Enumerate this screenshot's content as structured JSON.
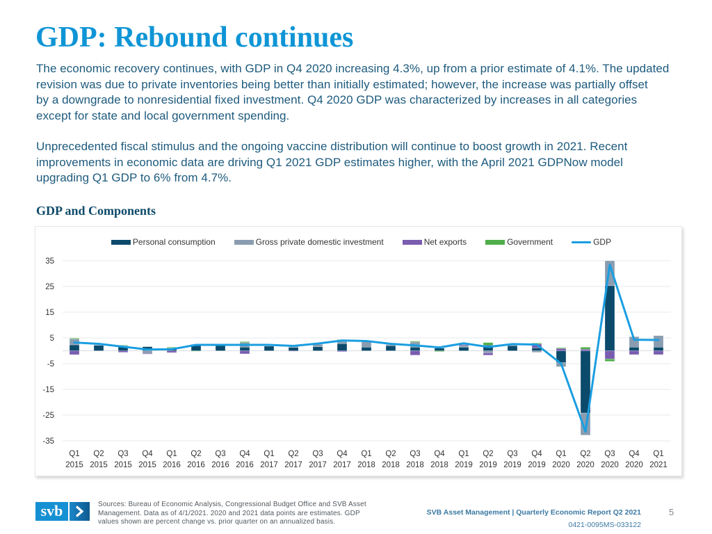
{
  "page": {
    "title": "GDP: Rebound continues",
    "paragraphs": [
      {
        "lines": [
          "The economic recovery continues, with GDP in Q4 2020 increasing 4.3%, up from a prior estimate of 4.1%. The updated",
          "revision was due to private inventories being better than initially estimated; however, the increase was partially offset",
          "by a downgrade to nonresidential fixed investment. Q4 2020 GDP was characterized by increases in all categories",
          "except for state and local government spending."
        ]
      },
      {
        "lines": [
          "Unprecedented fiscal stimulus and the ongoing vaccine distribution will continue to boost growth in 2021. Recent",
          "improvements in economic data are driving Q1 2021 GDP estimates higher, with the April 2021 GDPNow model",
          "upgrading Q1 GDP to 6% from 4.7%."
        ]
      }
    ],
    "section_heading": "GDP and Components"
  },
  "chart_data": {
    "type": "bar",
    "subtype": "stacked bar with line overlay",
    "title": "GDP and Components",
    "xlabel": "",
    "ylabel": "",
    "ylim": [
      -35,
      35
    ],
    "yticks": [
      35,
      25,
      15,
      5,
      -5,
      -15,
      -25,
      -35
    ],
    "grid": true,
    "stacked": true,
    "legend": "top",
    "units": "percent change vs. prior quarter, annualized",
    "categories": [
      {
        "quarter": "Q1",
        "year": "2015"
      },
      {
        "quarter": "Q2",
        "year": "2015"
      },
      {
        "quarter": "Q3",
        "year": "2015"
      },
      {
        "quarter": "Q4",
        "year": "2015"
      },
      {
        "quarter": "Q1",
        "year": "2016"
      },
      {
        "quarter": "Q2",
        "year": "2016"
      },
      {
        "quarter": "Q3",
        "year": "2016"
      },
      {
        "quarter": "Q4",
        "year": "2016"
      },
      {
        "quarter": "Q1",
        "year": "2017"
      },
      {
        "quarter": "Q2",
        "year": "2017"
      },
      {
        "quarter": "Q3",
        "year": "2017"
      },
      {
        "quarter": "Q4",
        "year": "2017"
      },
      {
        "quarter": "Q1",
        "year": "2018"
      },
      {
        "quarter": "Q2",
        "year": "2018"
      },
      {
        "quarter": "Q3",
        "year": "2018"
      },
      {
        "quarter": "Q4",
        "year": "2018"
      },
      {
        "quarter": "Q1",
        "year": "2019"
      },
      {
        "quarter": "Q2",
        "year": "2019"
      },
      {
        "quarter": "Q3",
        "year": "2019"
      },
      {
        "quarter": "Q4",
        "year": "2019"
      },
      {
        "quarter": "Q1",
        "year": "2020"
      },
      {
        "quarter": "Q2",
        "year": "2020"
      },
      {
        "quarter": "Q3",
        "year": "2020"
      },
      {
        "quarter": "Q4",
        "year": "2020"
      },
      {
        "quarter": "Q1",
        "year": "2021"
      }
    ],
    "series": [
      {
        "name": "Personal consumption",
        "type": "bar",
        "color": "#0b4a6b",
        "values": [
          2.3,
          2.1,
          1.7,
          1.6,
          0.6,
          2.2,
          2.0,
          1.4,
          1.8,
          1.3,
          1.6,
          2.8,
          1.4,
          2.0,
          1.4,
          1.0,
          1.4,
          2.2,
          2.0,
          1.1,
          -4.6,
          -24.2,
          25.3,
          1.4,
          1.4
        ]
      },
      {
        "name": "Gross private domestic investment",
        "type": "bar",
        "color": "#8a9db0",
        "values": [
          2.3,
          0.3,
          0.3,
          -1.0,
          0.5,
          0.0,
          0.2,
          1.8,
          0.4,
          0.6,
          0.9,
          1.1,
          2.4,
          0.4,
          2.0,
          0.5,
          0.6,
          -0.8,
          0.2,
          -0.6,
          -1.6,
          -8.6,
          9.7,
          4.1,
          4.5
        ]
      },
      {
        "name": "Net exports",
        "type": "bar",
        "color": "#7a5cb0",
        "values": [
          -1.5,
          0.0,
          -0.6,
          -0.3,
          -0.7,
          0.3,
          0.1,
          -1.2,
          0.0,
          -0.2,
          0.3,
          -0.35,
          0.0,
          0.3,
          -1.7,
          0.1,
          0.4,
          -0.9,
          0.1,
          1.5,
          0.9,
          0.6,
          -3.2,
          -1.5,
          -1.5
        ]
      },
      {
        "name": "Government",
        "type": "bar",
        "color": "#4fae4a",
        "values": [
          0.3,
          0.3,
          0.2,
          0.1,
          0.3,
          -0.2,
          0.0,
          0.35,
          0.1,
          0.2,
          0.0,
          0.45,
          0.0,
          0.0,
          0.35,
          -0.3,
          0.6,
          1.0,
          0.3,
          0.4,
          0.3,
          0.8,
          -0.9,
          -0.1,
          -0.1
        ]
      },
      {
        "name": "GDP",
        "type": "line",
        "color": "#1a9ee0",
        "values": [
          3.2,
          2.7,
          1.6,
          0.5,
          0.6,
          2.3,
          2.3,
          2.3,
          2.3,
          1.9,
          2.8,
          4.0,
          3.8,
          2.7,
          2.1,
          1.3,
          2.9,
          1.5,
          2.6,
          2.4,
          -5.0,
          -31.4,
          33.4,
          4.3,
          4.2
        ]
      }
    ]
  },
  "footer": {
    "logo_text": "svb",
    "logo_icon": "chevron-right-icon",
    "sources_lines": [
      "Sources: Bureau of Economic Analysis, Congressional Budget Office and SVB Asset",
      "Management. Data as of 4/1/2021. 2020 and 2021 data points are estimates. GDP",
      "values shown are percent change vs. prior quarter on an annualized basis."
    ],
    "report_title": "SVB Asset Management | Quarterly Economic Report Q2 2021",
    "page_number": "5",
    "doc_code": "0421-0095MS-033122"
  }
}
